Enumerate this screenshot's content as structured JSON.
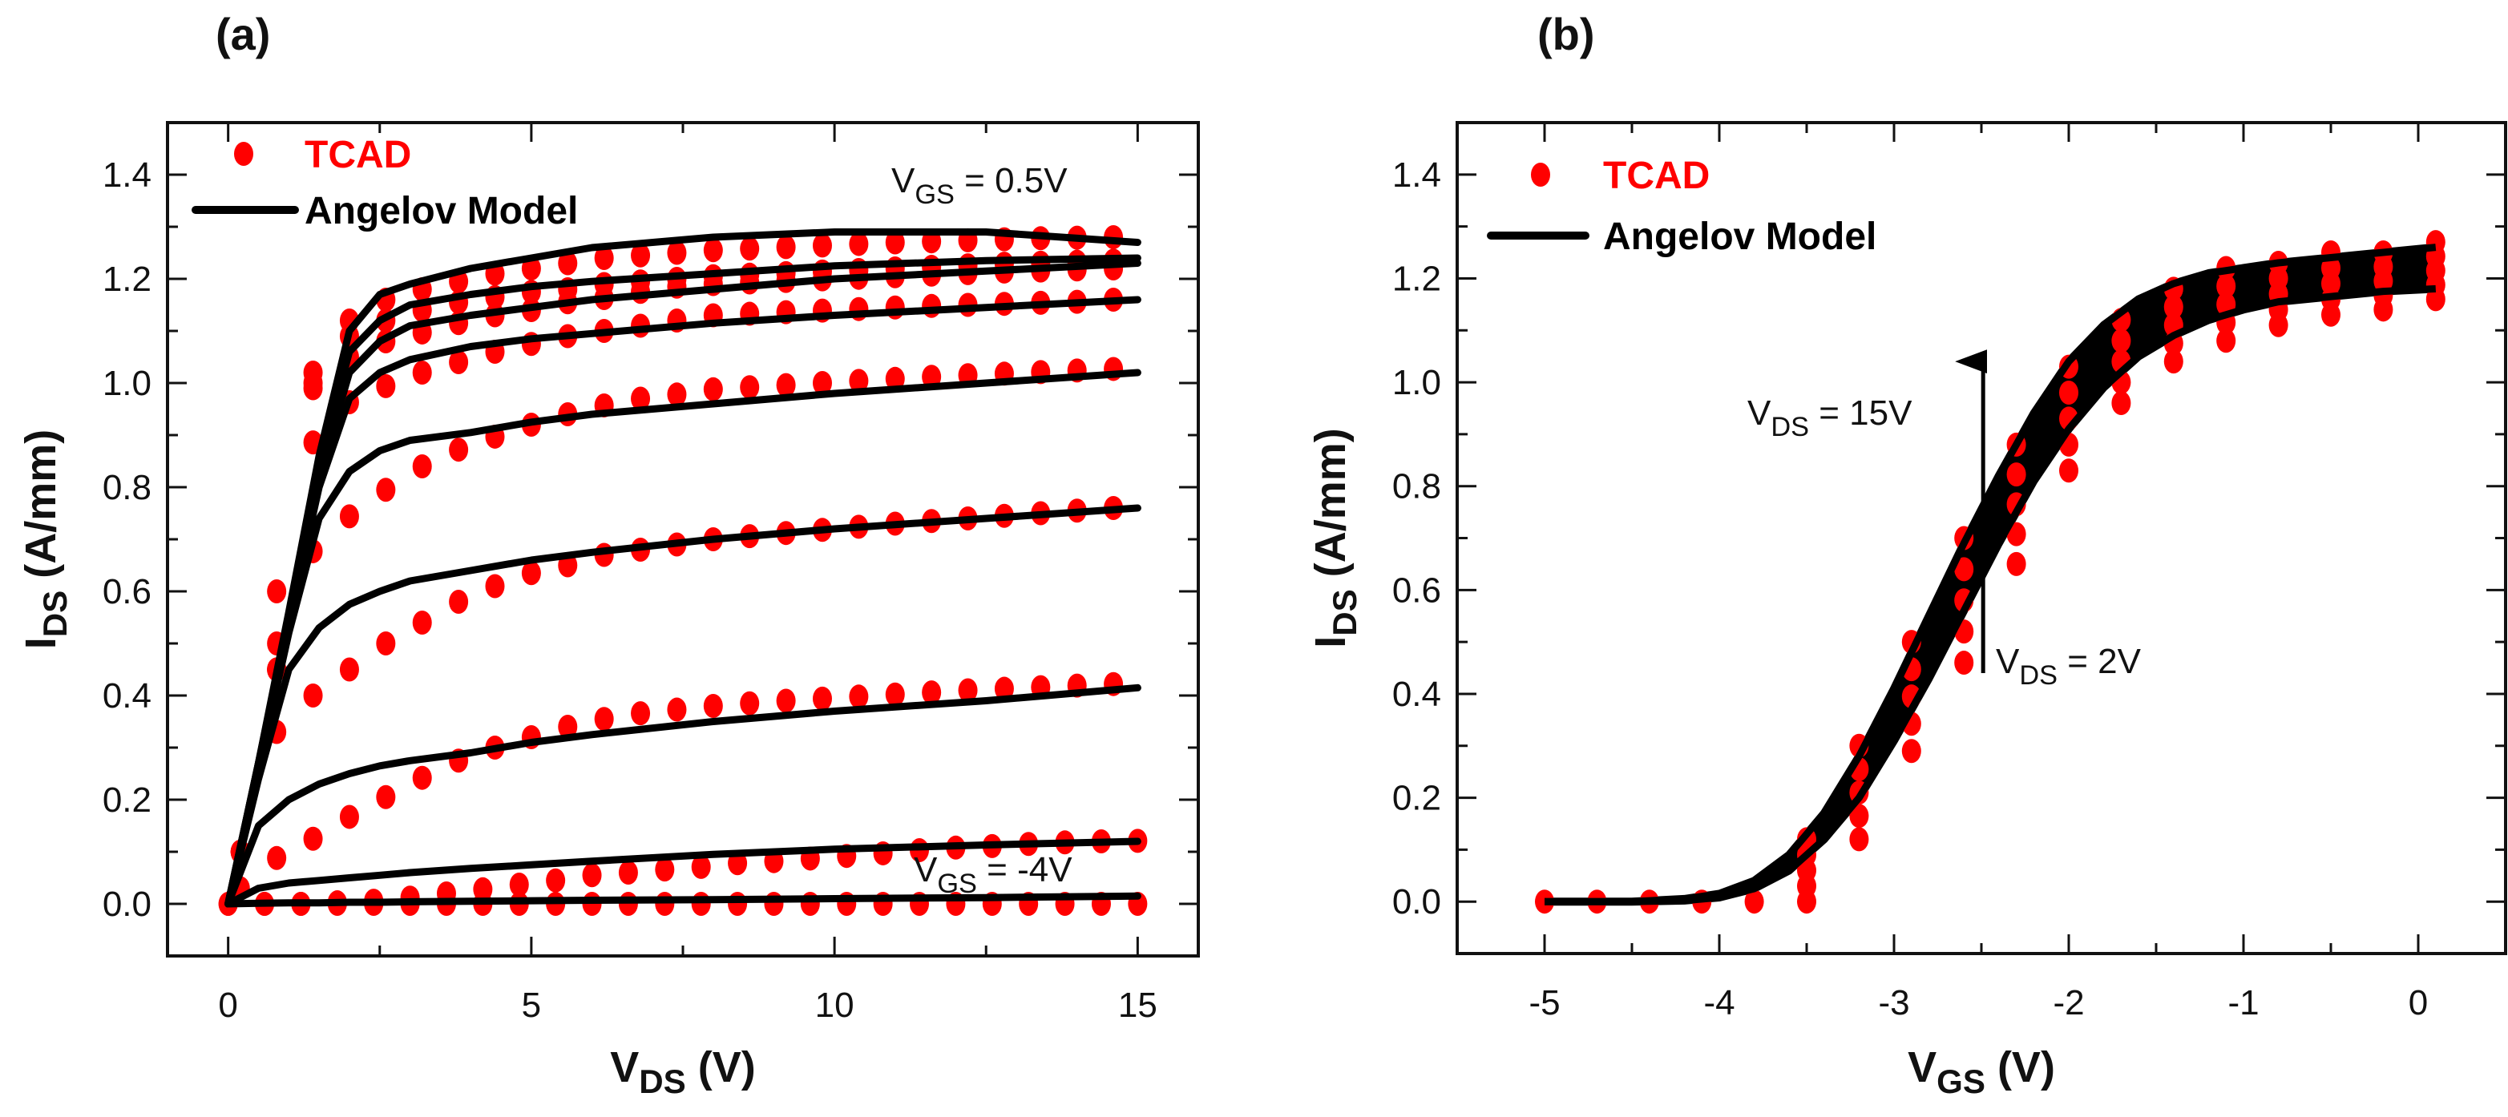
{
  "colors": {
    "tcad": "#ff0000",
    "model": "#000000",
    "axis": "#111111"
  },
  "chart_data": [
    {
      "type": "line",
      "panel_label": "(a)",
      "title": "",
      "xlabel": {
        "main": "V",
        "sub": "DS",
        "rest": " (V)"
      },
      "ylabel": {
        "main": "I",
        "sub": "DS",
        "rest": " (A/mm)"
      },
      "xlim": [
        -1,
        16
      ],
      "ylim": [
        -0.1,
        1.5
      ],
      "grid": false,
      "legend_position": "top-left",
      "legend": [
        {
          "label": "TCAD",
          "marker": "dot",
          "color": "#ff0000"
        },
        {
          "label": "Angelov Model",
          "marker": "line",
          "color": "#000000"
        }
      ],
      "xticks": {
        "major": [
          0,
          5,
          10,
          15
        ],
        "minor": [
          2.5,
          7.5,
          12.5
        ],
        "labels": [
          "0",
          "5",
          "10",
          "15"
        ]
      },
      "yticks": {
        "major": [
          0,
          0.2,
          0.4,
          0.6,
          0.8,
          1.0,
          1.2,
          1.4
        ],
        "minor": [
          0.1,
          0.3,
          0.5,
          0.7,
          0.9,
          1.1,
          1.3
        ],
        "labels": [
          "0.0",
          "0.2",
          "0.4",
          "0.6",
          "0.8",
          "1.0",
          "1.2",
          "1.4"
        ]
      },
      "annotations": [
        {
          "main": "V",
          "sub": "GS",
          "rest": " = 0.5V"
        },
        {
          "main": "V",
          "sub": "GS",
          "rest": " = -4V"
        }
      ],
      "model": {
        "x": [
          0,
          0.5,
          1,
          1.5,
          2,
          2.5,
          3,
          4,
          5,
          6,
          8,
          10,
          12.5,
          15
        ],
        "series": [
          [
            0,
            0.27,
            0.56,
            0.86,
            1.1,
            1.17,
            1.19,
            1.22,
            1.24,
            1.26,
            1.28,
            1.29,
            1.29,
            1.27
          ],
          [
            0,
            0.27,
            0.55,
            0.84,
            1.06,
            1.12,
            1.15,
            1.17,
            1.185,
            1.195,
            1.21,
            1.225,
            1.235,
            1.24
          ],
          [
            0,
            0.27,
            0.55,
            0.82,
            1.02,
            1.08,
            1.11,
            1.13,
            1.145,
            1.16,
            1.18,
            1.2,
            1.215,
            1.23
          ],
          [
            0,
            0.27,
            0.54,
            0.8,
            0.97,
            1.02,
            1.045,
            1.07,
            1.085,
            1.095,
            1.115,
            1.13,
            1.145,
            1.16
          ],
          [
            0,
            0.26,
            0.52,
            0.74,
            0.83,
            0.87,
            0.89,
            0.905,
            0.925,
            0.94,
            0.96,
            0.98,
            1.0,
            1.02
          ],
          [
            0,
            0.24,
            0.45,
            0.53,
            0.575,
            0.6,
            0.62,
            0.64,
            0.66,
            0.675,
            0.7,
            0.72,
            0.74,
            0.76
          ],
          [
            0,
            0.15,
            0.2,
            0.23,
            0.25,
            0.265,
            0.275,
            0.29,
            0.31,
            0.325,
            0.35,
            0.37,
            0.39,
            0.415
          ],
          [
            0,
            0.03,
            0.04,
            0.045,
            0.05,
            0.055,
            0.06,
            0.068,
            0.075,
            0.082,
            0.095,
            0.105,
            0.113,
            0.12
          ],
          [
            0,
            0.001,
            0.002,
            0.002,
            0.003,
            0.003,
            0.004,
            0.005,
            0.006,
            0.007,
            0.008,
            0.01,
            0.012,
            0.015
          ]
        ]
      },
      "tcad": {
        "groups": [
          {
            "x": [
              0.2,
              0.8,
              1.4,
              2.0,
              2.6,
              3.2,
              3.8,
              4.4,
              5.0,
              5.6,
              6.2,
              6.8,
              7.4,
              8.0,
              8.6,
              9.2,
              9.8,
              10.4,
              11.0,
              11.6,
              12.2,
              12.8,
              13.4,
              14.0,
              14.6
            ],
            "series": [
              [
                0.1,
                0.45,
                1.02,
                1.12,
                1.16,
                1.18,
                1.195,
                1.21,
                1.22,
                1.23,
                1.24,
                1.245,
                1.25,
                1.255,
                1.258,
                1.261,
                1.264,
                1.267,
                1.27,
                1.272,
                1.274,
                1.276,
                1.278,
                1.279,
                1.28
              ],
              [
                0.1,
                0.45,
                1.0,
                1.09,
                1.12,
                1.14,
                1.155,
                1.165,
                1.175,
                1.18,
                1.19,
                1.195,
                1.2,
                1.205,
                1.208,
                1.211,
                1.214,
                1.217,
                1.22,
                1.223,
                1.226,
                1.229,
                1.231,
                1.233,
                1.235
              ],
              [
                0.1,
                0.45,
                0.99,
                1.05,
                1.08,
                1.097,
                1.115,
                1.13,
                1.14,
                1.155,
                1.163,
                1.175,
                1.185,
                1.19,
                1.193,
                1.196,
                1.199,
                1.202,
                1.205,
                1.208,
                1.211,
                1.214,
                1.216,
                1.218,
                1.22
              ],
              [
                0.1,
                0.6,
                0.886,
                0.963,
                0.994,
                1.02,
                1.04,
                1.06,
                1.075,
                1.09,
                1.1,
                1.11,
                1.12,
                1.13,
                1.133,
                1.136,
                1.139,
                1.142,
                1.145,
                1.148,
                1.15,
                1.152,
                1.154,
                1.156,
                1.16
              ],
              [
                0.1,
                0.5,
                0.677,
                0.744,
                0.795,
                0.84,
                0.872,
                0.897,
                0.92,
                0.94,
                0.957,
                0.97,
                0.978,
                0.988,
                0.992,
                0.996,
                1.0,
                1.004,
                1.008,
                1.012,
                1.015,
                1.018,
                1.021,
                1.024,
                1.027
              ],
              [
                0.1,
                0.33,
                0.4,
                0.45,
                0.5,
                0.54,
                0.58,
                0.61,
                0.635,
                0.65,
                0.67,
                0.68,
                0.69,
                0.7,
                0.706,
                0.712,
                0.718,
                0.724,
                0.73,
                0.735,
                0.74,
                0.745,
                0.75,
                0.755,
                0.76
              ],
              [
                0.03,
                0.088,
                0.125,
                0.167,
                0.205,
                0.242,
                0.275,
                0.3,
                0.32,
                0.34,
                0.355,
                0.366,
                0.373,
                0.38,
                0.385,
                0.39,
                0.394,
                0.398,
                0.402,
                0.406,
                0.41,
                0.413,
                0.416,
                0.419,
                0.422
              ]
            ]
          },
          {
            "x": [
              0,
              0.6,
              1.2,
              1.8,
              2.4,
              3.0,
              3.6,
              4.2,
              4.8,
              5.4,
              6.0,
              6.6,
              7.2,
              7.8,
              8.4,
              9.0,
              9.6,
              10.2,
              10.8,
              11.4,
              12.0,
              12.6,
              13.2,
              13.8,
              14.4,
              15.0
            ],
            "series": [
              [
                0,
                0,
                0,
                0.003,
                0.006,
                0.012,
                0.02,
                0.028,
                0.037,
                0.045,
                0.055,
                0.06,
                0.066,
                0.071,
                0.078,
                0.082,
                0.087,
                0.092,
                0.097,
                0.103,
                0.108,
                0.111,
                0.115,
                0.118,
                0.12,
                0.121
              ],
              [
                0,
                0,
                0,
                0,
                0,
                0,
                0,
                0,
                0,
                0,
                0,
                0,
                0,
                0,
                0,
                0,
                0,
                0,
                0,
                0,
                0,
                0,
                0,
                0,
                0,
                0
              ]
            ]
          }
        ]
      }
    },
    {
      "type": "line",
      "panel_label": "(b)",
      "title": "",
      "xlabel": {
        "main": "V",
        "sub": "GS",
        "rest": " (V)"
      },
      "ylabel": {
        "main": "I",
        "sub": "DS",
        "rest": " (A/mm)"
      },
      "xlim": [
        -5.5,
        0.5
      ],
      "ylim": [
        -0.1,
        1.5
      ],
      "grid": false,
      "legend_position": "top-left",
      "legend": [
        {
          "label": "TCAD",
          "marker": "dot",
          "color": "#ff0000"
        },
        {
          "label": "Angelov Model",
          "marker": "line",
          "color": "#000000"
        }
      ],
      "xticks": {
        "major": [
          -5,
          -4,
          -3,
          -2,
          -1,
          0
        ],
        "minor": [
          -4.5,
          -3.5,
          -2.5,
          -1.5,
          -0.5
        ],
        "labels": [
          "-5",
          "-4",
          "-3",
          "-2",
          "-1",
          "0"
        ]
      },
      "yticks": {
        "major": [
          0,
          0.2,
          0.4,
          0.6,
          0.8,
          1.0,
          1.2,
          1.4
        ],
        "minor": [
          0.1,
          0.3,
          0.5,
          0.7,
          0.9,
          1.1,
          1.3
        ],
        "labels": [
          "0.0",
          "0.2",
          "0.4",
          "0.6",
          "0.8",
          "1.0",
          "1.2",
          "1.4"
        ]
      },
      "annotations": [
        {
          "main": "V",
          "sub": "DS",
          "rest": " = 15V"
        },
        {
          "main": "V",
          "sub": "DS",
          "rest": " = 2V"
        }
      ],
      "arrow": {
        "x": -2.49,
        "y_from": 0.44,
        "y_to": 1.04
      },
      "model": {
        "x": [
          -5,
          -4.5,
          -4.2,
          -4,
          -3.8,
          -3.6,
          -3.4,
          -3.2,
          -3,
          -2.8,
          -2.6,
          -2.4,
          -2.2,
          -2,
          -1.8,
          -1.6,
          -1.4,
          -1.2,
          -1,
          -0.8,
          -0.5,
          -0.2,
          0.1
        ],
        "vds_range": [
          2,
          15
        ],
        "upper_vds15": [
          0,
          0.0,
          0.005,
          0.015,
          0.04,
          0.09,
          0.17,
          0.28,
          0.41,
          0.55,
          0.69,
          0.82,
          0.94,
          1.04,
          1.11,
          1.16,
          1.19,
          1.21,
          1.22,
          1.23,
          1.24,
          1.25,
          1.26
        ],
        "lower_vds2": [
          0,
          0,
          0.002,
          0.008,
          0.025,
          0.06,
          0.12,
          0.2,
          0.31,
          0.43,
          0.56,
          0.69,
          0.81,
          0.91,
          0.99,
          1.05,
          1.09,
          1.12,
          1.14,
          1.155,
          1.165,
          1.175,
          1.18
        ]
      },
      "tcad": {
        "x": [
          -5,
          -4.7,
          -4.4,
          -4.1,
          -3.8,
          -3.5,
          -3.2,
          -2.9,
          -2.6,
          -2.3,
          -2.0,
          -1.7,
          -1.4,
          -1.1,
          -0.8,
          -0.5,
          -0.2,
          0.1
        ],
        "min": [
          0,
          0,
          0,
          0,
          0,
          0,
          0.12,
          0.29,
          0.46,
          0.65,
          0.83,
          0.96,
          1.04,
          1.08,
          1.11,
          1.13,
          1.14,
          1.16
        ],
        "max": [
          0,
          0,
          0,
          0,
          0,
          0.12,
          0.3,
          0.5,
          0.7,
          0.88,
          1.03,
          1.12,
          1.18,
          1.22,
          1.23,
          1.25,
          1.25,
          1.27
        ]
      }
    }
  ]
}
